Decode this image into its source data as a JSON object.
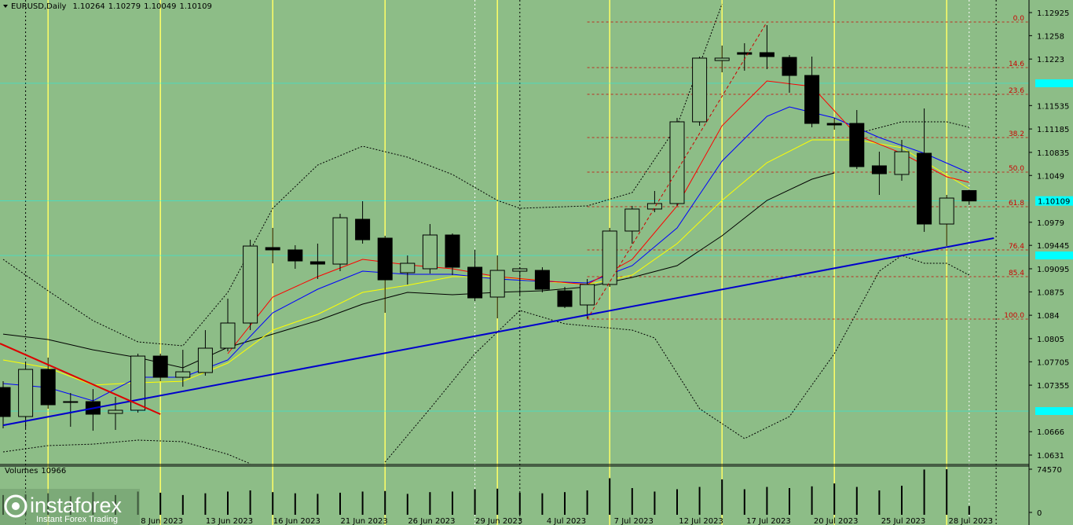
{
  "chart_data": {
    "type": "candlestick",
    "title": "EURUSD,Daily",
    "background": "#8dbd87",
    "up_color": "#8dbd87",
    "down_color": "#000000",
    "categories": [
      null,
      null,
      null,
      null,
      null,
      null,
      null,
      "8 Jun 2023",
      null,
      null,
      "13 Jun 2023",
      null,
      null,
      "16 Jun 2023",
      null,
      null,
      "21 Jun 2023",
      null,
      null,
      "26 Jun 2023",
      null,
      null,
      "29 Jun 2023",
      null,
      null,
      "4 Jul 2023",
      null,
      null,
      "7 Jul 2023",
      null,
      null,
      "12 Jul 2023",
      null,
      null,
      "17 Jul 2023",
      null,
      null,
      "20 Jul 2023",
      null,
      null,
      "25 Jul 2023",
      null,
      null,
      "28 Jul 2023"
    ],
    "open": [
      1.0732,
      1.06886,
      1.07591,
      1.07109,
      1.07109,
      1.06933,
      1.0698,
      1.0779,
      1.07473,
      1.07544,
      1.07908,
      1.08284,
      1.09412,
      1.09377,
      1.092,
      1.09165,
      1.09835,
      1.09553,
      1.09036,
      1.09095,
      1.096,
      1.09118,
      1.08672,
      1.09059,
      1.09071,
      1.08766,
      1.08554,
      1.0886,
      1.09659,
      1.09988,
      1.1007,
      1.11292,
      1.12208,
      1.12326,
      1.12326,
      1.12255,
      1.11985,
      1.11268,
      1.11268,
      1.10634,
      1.10505,
      1.10822,
      1.09764,
      1.10264
    ],
    "high": [
      1.07414,
      1.07685,
      1.07767,
      1.07238,
      1.07297,
      1.07179,
      1.07826,
      1.07826,
      1.07884,
      1.08178,
      1.08648,
      1.09529,
      1.09706,
      1.09447,
      1.09471,
      1.09917,
      1.10105,
      1.09588,
      1.09294,
      1.09764,
      1.09623,
      1.09377,
      1.09294,
      1.09118,
      1.09118,
      1.08824,
      1.08942,
      1.09706,
      1.10035,
      1.10258,
      1.11351,
      1.12267,
      1.12432,
      1.12467,
      1.12737,
      1.12291,
      1.12267,
      1.11351,
      1.11468,
      1.10845,
      1.11022,
      1.11492,
      1.10199,
      1.10279
    ],
    "low": [
      1.06709,
      1.06709,
      1.07003,
      1.06733,
      1.06674,
      1.06686,
      1.06944,
      1.07414,
      1.07332,
      1.07497,
      1.07861,
      1.08178,
      1.09177,
      1.09095,
      1.08942,
      1.09059,
      1.09471,
      1.08437,
      1.0886,
      1.09024,
      1.09001,
      1.08613,
      1.08354,
      1.08707,
      1.08742,
      1.08507,
      1.08354,
      1.08824,
      1.09471,
      1.09941,
      1.10035,
      1.11233,
      1.12032,
      1.12056,
      1.12079,
      1.11727,
      1.1121,
      1.11174,
      1.10587,
      1.10199,
      1.10411,
      1.09647,
      1.09435,
      1.10049
    ],
    "close": [
      1.06886,
      1.07591,
      1.07062,
      1.07097,
      1.06921,
      1.0698,
      1.0779,
      1.07473,
      1.07555,
      1.07908,
      1.08284,
      1.09435,
      1.09377,
      1.09212,
      1.09165,
      1.09858,
      1.09529,
      1.0893,
      1.09177,
      1.096,
      1.09118,
      1.0866,
      1.09071,
      1.09095,
      1.08789,
      1.08531,
      1.0886,
      1.09659,
      1.09988,
      1.1007,
      1.11292,
      1.12244,
      1.12244,
      1.12302,
      1.12267,
      1.11985,
      1.11268,
      1.11245,
      1.10622,
      1.10516,
      1.10845,
      1.09764,
      1.10152,
      1.10109
    ],
    "ylim": [
      1.06181,
      1.13113
    ],
    "yticks": [
      1.12925,
      1.1258,
      1.1223,
      1.11535,
      1.11185,
      1.10835,
      1.1049,
      1.0979,
      1.09445,
      1.09095,
      1.0875,
      1.084,
      1.0805,
      1.07705,
      1.07355,
      1.0666,
      1.0631
    ],
    "price_lines": [
      1.11868,
      1.09294,
      1.06968
    ],
    "price_line_color": "#00ffff",
    "fib_color": "#cc0000",
    "fib_levels": [
      {
        "label": "0.0",
        "price": 1.12784
      },
      {
        "label": "14.6",
        "price": 1.12103
      },
      {
        "label": "23.6",
        "price": 1.11703
      },
      {
        "label": "38.2",
        "price": 1.11057
      },
      {
        "label": "50.0",
        "price": 1.1054
      },
      {
        "label": "61.8",
        "price": 1.10023
      },
      {
        "label": "76.4",
        "price": 1.09377
      },
      {
        "label": "85.4",
        "price": 1.08977
      },
      {
        "label": "100.0",
        "price": 1.08343
      }
    ],
    "indicators": [
      {
        "color": "#000000",
        "style": "dotted",
        "x": [
          0,
          2,
          4,
          6,
          8,
          10,
          12,
          14,
          16,
          18,
          20,
          22,
          23,
          26,
          28,
          30,
          32,
          35,
          38,
          40,
          42,
          43
        ],
        "values": [
          1.09236,
          1.08766,
          1.08319,
          1.08002,
          1.07943,
          1.08742,
          1.09999,
          1.10646,
          1.10928,
          1.10763,
          1.10505,
          1.10117,
          1.09999,
          1.10035,
          1.10234,
          1.11233,
          1.13054,
          null,
          1.11116,
          1.11292,
          1.11292,
          1.1121
        ]
      },
      {
        "color": "#000000",
        "style": "dotted",
        "x": [
          0,
          2,
          4,
          6,
          8,
          10,
          11,
          14,
          17,
          19,
          21,
          23,
          25,
          28,
          29,
          31,
          33,
          35,
          37,
          39,
          40,
          41,
          42,
          43
        ],
        "values": [
          1.06357,
          1.06451,
          1.06474,
          1.06533,
          1.0651,
          1.06322,
          1.06181,
          null,
          1.06204,
          1.07003,
          1.07826,
          1.08472,
          1.08272,
          1.08178,
          1.08061,
          1.07003,
          1.06557,
          1.06886,
          1.07826,
          1.09059,
          1.09294,
          1.09177,
          1.09177,
          1.09001
        ]
      },
      {
        "color": "#000000",
        "style": "solid",
        "x": [
          0,
          2,
          4,
          6,
          8,
          10,
          12,
          14,
          16,
          18,
          20,
          22,
          24,
          26,
          28,
          30,
          32,
          34,
          36,
          37
        ],
        "values": [
          1.08119,
          1.08037,
          1.07884,
          1.07767,
          1.07614,
          1.0792,
          1.08119,
          1.08319,
          1.08566,
          1.08742,
          1.08707,
          1.08742,
          1.08766,
          1.08824,
          1.08965,
          1.09142,
          1.09588,
          1.10117,
          1.10434,
          1.10528
        ]
      },
      {
        "color": "#ffff00",
        "style": "solid",
        "x": [
          0,
          2,
          4,
          6,
          8,
          10,
          12,
          14,
          16,
          18,
          20,
          22,
          24,
          26,
          28,
          30,
          32,
          34,
          36,
          38,
          40,
          43
        ],
        "values": [
          1.07732,
          1.07614,
          1.07356,
          1.07391,
          1.07414,
          1.07685,
          1.08178,
          1.08413,
          1.08742,
          1.08848,
          1.08977,
          1.08977,
          1.08907,
          1.0886,
          1.09001,
          1.09471,
          1.10117,
          1.10681,
          1.11022,
          1.11022,
          1.10904,
          1.10293
        ]
      },
      {
        "color": "#0000ff",
        "style": "solid",
        "x": [
          0,
          2,
          4,
          6,
          8,
          10,
          12,
          14,
          16,
          18,
          20,
          22,
          24,
          26,
          28,
          30,
          32,
          34,
          35,
          37,
          39,
          41,
          43
        ],
        "values": [
          1.07379,
          1.0732,
          1.07121,
          1.07473,
          1.07473,
          1.07732,
          1.08437,
          1.08789,
          1.09059,
          1.09012,
          1.09012,
          1.08942,
          1.08907,
          1.08883,
          1.09142,
          1.09706,
          1.10704,
          1.11374,
          1.11515,
          1.11351,
          1.11057,
          1.10822,
          1.10528
        ]
      },
      {
        "color": "#ff0000",
        "style": "solid",
        "x": [
          10,
          12,
          14,
          16,
          18,
          20,
          22,
          24,
          26,
          28,
          30,
          32,
          34,
          36,
          38,
          40,
          42,
          43
        ],
        "values": [
          1.07826,
          1.08672,
          1.08977,
          1.09236,
          1.09153,
          1.09095,
          1.08977,
          1.08918,
          1.0886,
          1.09236,
          1.10035,
          1.11233,
          1.11903,
          1.11821,
          1.11092,
          1.10822,
          1.10469,
          1.10387
        ]
      }
    ],
    "trendlines": [
      {
        "color": "#0000cc",
        "style": "bold",
        "x": [
          0,
          44.1
        ],
        "values": [
          1.06756,
          1.09553
        ]
      },
      {
        "color": "#dd0000",
        "style": "bold",
        "x": [
          -0.14,
          7
        ],
        "values": [
          1.07978,
          1.06921
        ]
      },
      {
        "color": "#cc0000",
        "style": "dashed",
        "x": [
          26,
          34
        ],
        "values": [
          1.08343,
          1.12784
        ]
      }
    ],
    "volume": {
      "label": "Volumes",
      "values": [
        30000,
        31000,
        33000,
        28000,
        35000,
        30000,
        36000,
        34000,
        30000,
        33000,
        36000,
        38000,
        35000,
        33000,
        32000,
        34000,
        36000,
        37000,
        32000,
        35000,
        36000,
        40000,
        41000,
        34000,
        33000,
        35000,
        38000,
        59000,
        42000,
        36000,
        40000,
        44000,
        57000,
        40000,
        44000,
        42000,
        45000,
        50000,
        44000,
        38000,
        46000,
        74000,
        74570,
        10966
      ],
      "ylim": [
        0,
        74570
      ],
      "yticks": [
        0,
        74570
      ]
    },
    "watermark": {
      "name": "instaforex",
      "tagline": "Instant Forex Trading"
    }
  }
}
